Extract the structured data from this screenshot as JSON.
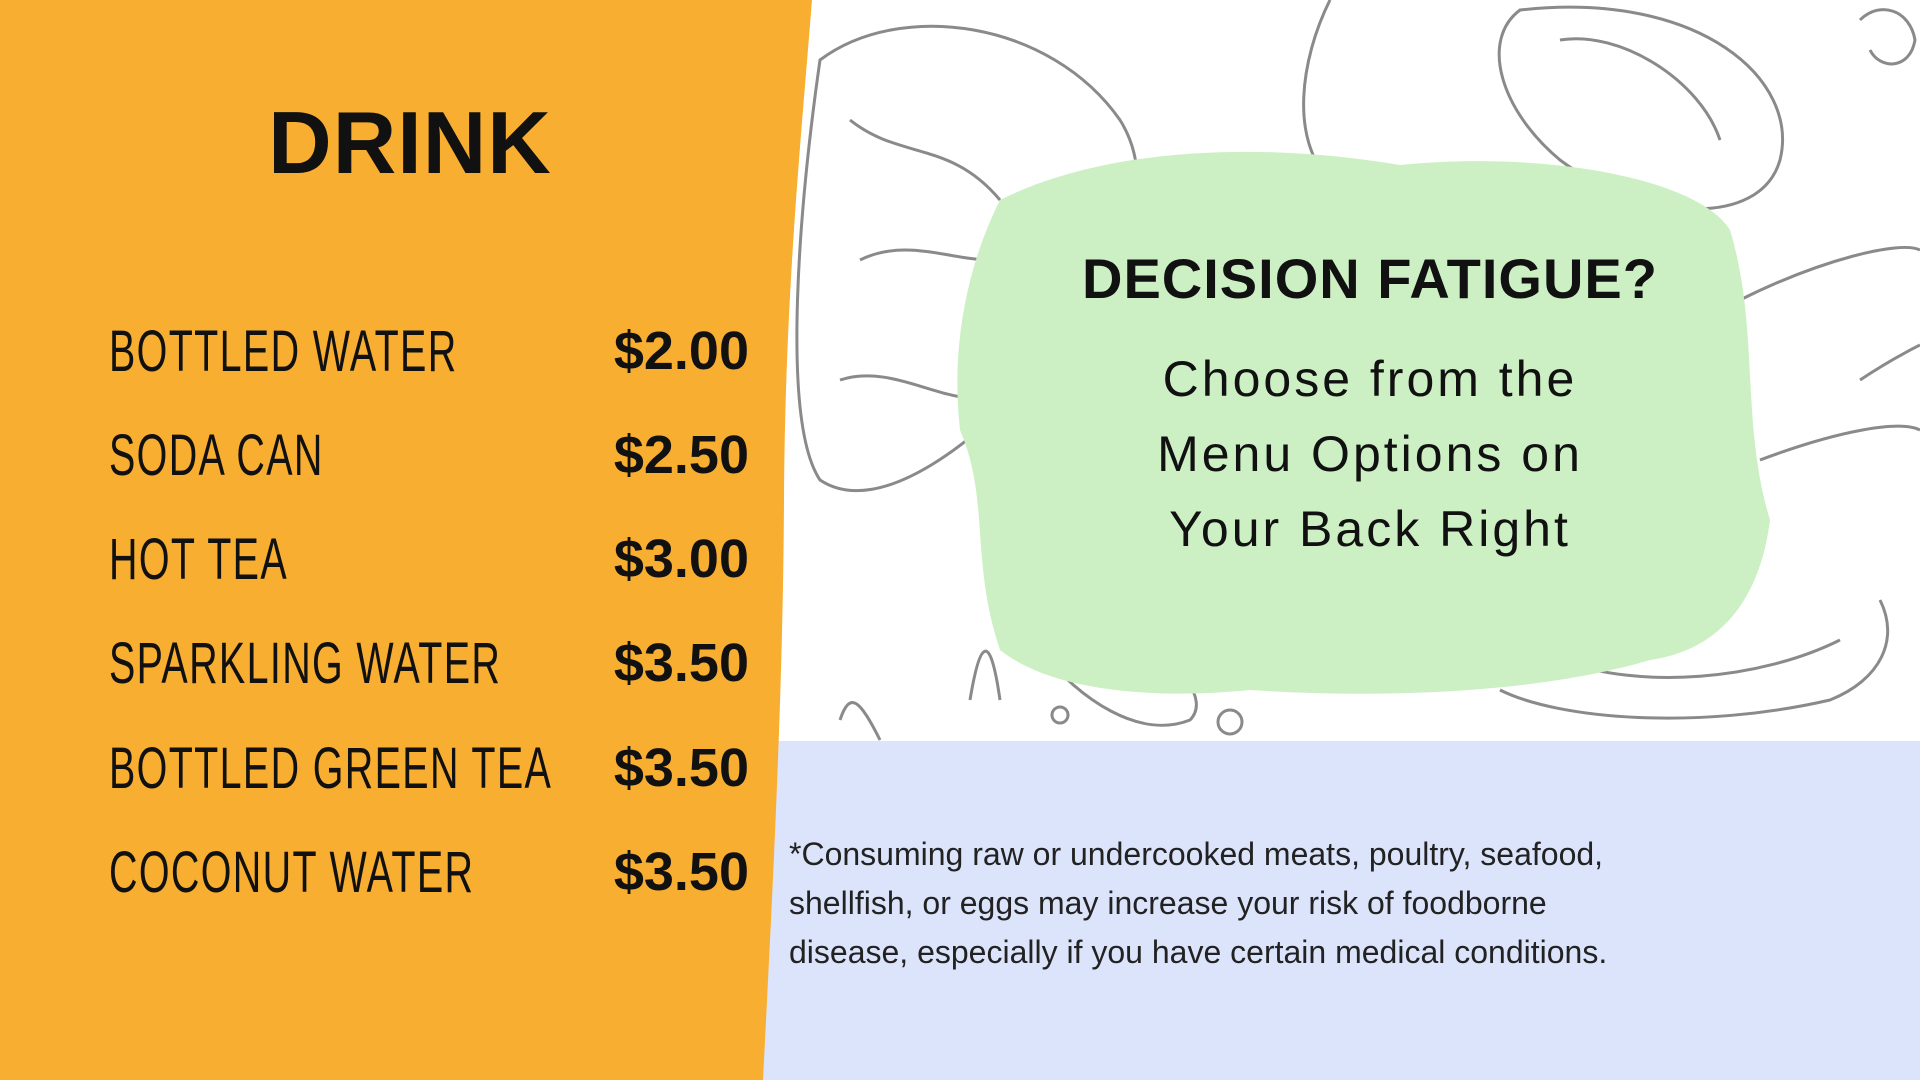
{
  "menu": {
    "title": "DRINK",
    "items": [
      {
        "name": "BOTTLED WATER",
        "price": "$2.00"
      },
      {
        "name": "SODA CAN",
        "price": "$2.50"
      },
      {
        "name": "HOT TEA",
        "price": "$3.00"
      },
      {
        "name": "SPARKLING WATER",
        "price": "$3.50"
      },
      {
        "name": "BOTTLED GREEN TEA",
        "price": "$3.50"
      },
      {
        "name": "COCONUT WATER",
        "price": "$3.50"
      }
    ]
  },
  "callout": {
    "headline": "DECISION FATIGUE?",
    "lines": [
      "Choose from the",
      "Menu Options on",
      "Your Back Right"
    ]
  },
  "disclaimer": {
    "lines": [
      "*Consuming raw or undercooked meats, poultry, seafood,",
      "shellfish, or eggs may increase your risk of foodborne",
      "disease, especially if you have certain medical conditions."
    ]
  },
  "colors": {
    "orange": "#f8ae30",
    "green": "#ccf0c4",
    "blue": "#dce4fb",
    "sketch": "#8a8a8a"
  }
}
